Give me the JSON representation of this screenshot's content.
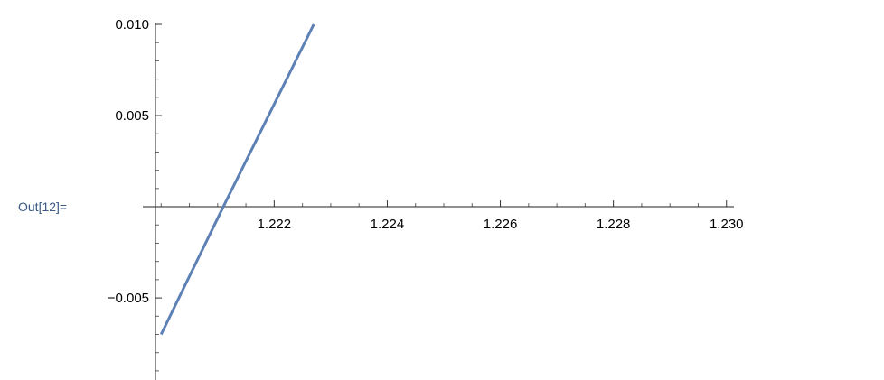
{
  "output_label": "Out[12]=",
  "colors": {
    "series": "#5e81b5",
    "out_label": "#3a5a85",
    "axis": "#222222"
  },
  "chart_data": {
    "type": "line",
    "title": "",
    "xlabel": "",
    "ylabel": "",
    "xlim": [
      1.2199,
      1.2301
    ],
    "ylim": [
      -0.0095,
      0.0101
    ],
    "x_ticks": [
      {
        "value": 1.222,
        "label": "1.222"
      },
      {
        "value": 1.224,
        "label": "1.224"
      },
      {
        "value": 1.226,
        "label": "1.226"
      },
      {
        "value": 1.228,
        "label": "1.228"
      },
      {
        "value": 1.23,
        "label": "1.230"
      }
    ],
    "y_ticks": [
      {
        "value": 0.01,
        "label": "0.010"
      },
      {
        "value": 0.005,
        "label": "0.005"
      },
      {
        "value": -0.005,
        "label": "−0.005"
      }
    ],
    "grid": false,
    "series": [
      {
        "x": [
          1.22,
          1.2211,
          1.2227
        ],
        "y": [
          -0.007,
          0.0,
          0.01
        ],
        "color": "#5e81b5"
      }
    ]
  }
}
